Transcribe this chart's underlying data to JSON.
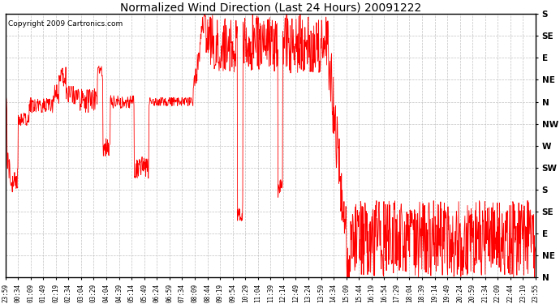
{
  "title": "Normalized Wind Direction (Last 24 Hours) 20091222",
  "copyright": "Copyright 2009 Cartronics.com",
  "line_color": "red",
  "background_color": "white",
  "grid_color": "#bbbbbb",
  "title_color": "black",
  "ytick_labels": [
    "S",
    "SE",
    "E",
    "NE",
    "N",
    "NW",
    "W",
    "SW",
    "S",
    "SE",
    "E",
    "NE",
    "N"
  ],
  "ytick_values": [
    12,
    11,
    10,
    9,
    8,
    7,
    6,
    5,
    4,
    3,
    2,
    1,
    0
  ],
  "xtick_labels": [
    "23:59",
    "00:34",
    "01:09",
    "01:49",
    "02:19",
    "02:34",
    "03:04",
    "03:29",
    "04:04",
    "04:39",
    "05:14",
    "05:49",
    "06:24",
    "06:59",
    "07:34",
    "08:09",
    "08:44",
    "09:19",
    "09:54",
    "10:29",
    "11:04",
    "11:39",
    "12:14",
    "12:49",
    "13:24",
    "13:59",
    "14:34",
    "15:09",
    "15:44",
    "16:19",
    "16:54",
    "17:29",
    "18:04",
    "18:39",
    "19:14",
    "19:49",
    "20:24",
    "20:59",
    "21:34",
    "22:09",
    "22:44",
    "23:19",
    "23:55"
  ],
  "ylim": [
    0,
    12
  ],
  "figsize": [
    6.9,
    3.75
  ],
  "dpi": 100
}
